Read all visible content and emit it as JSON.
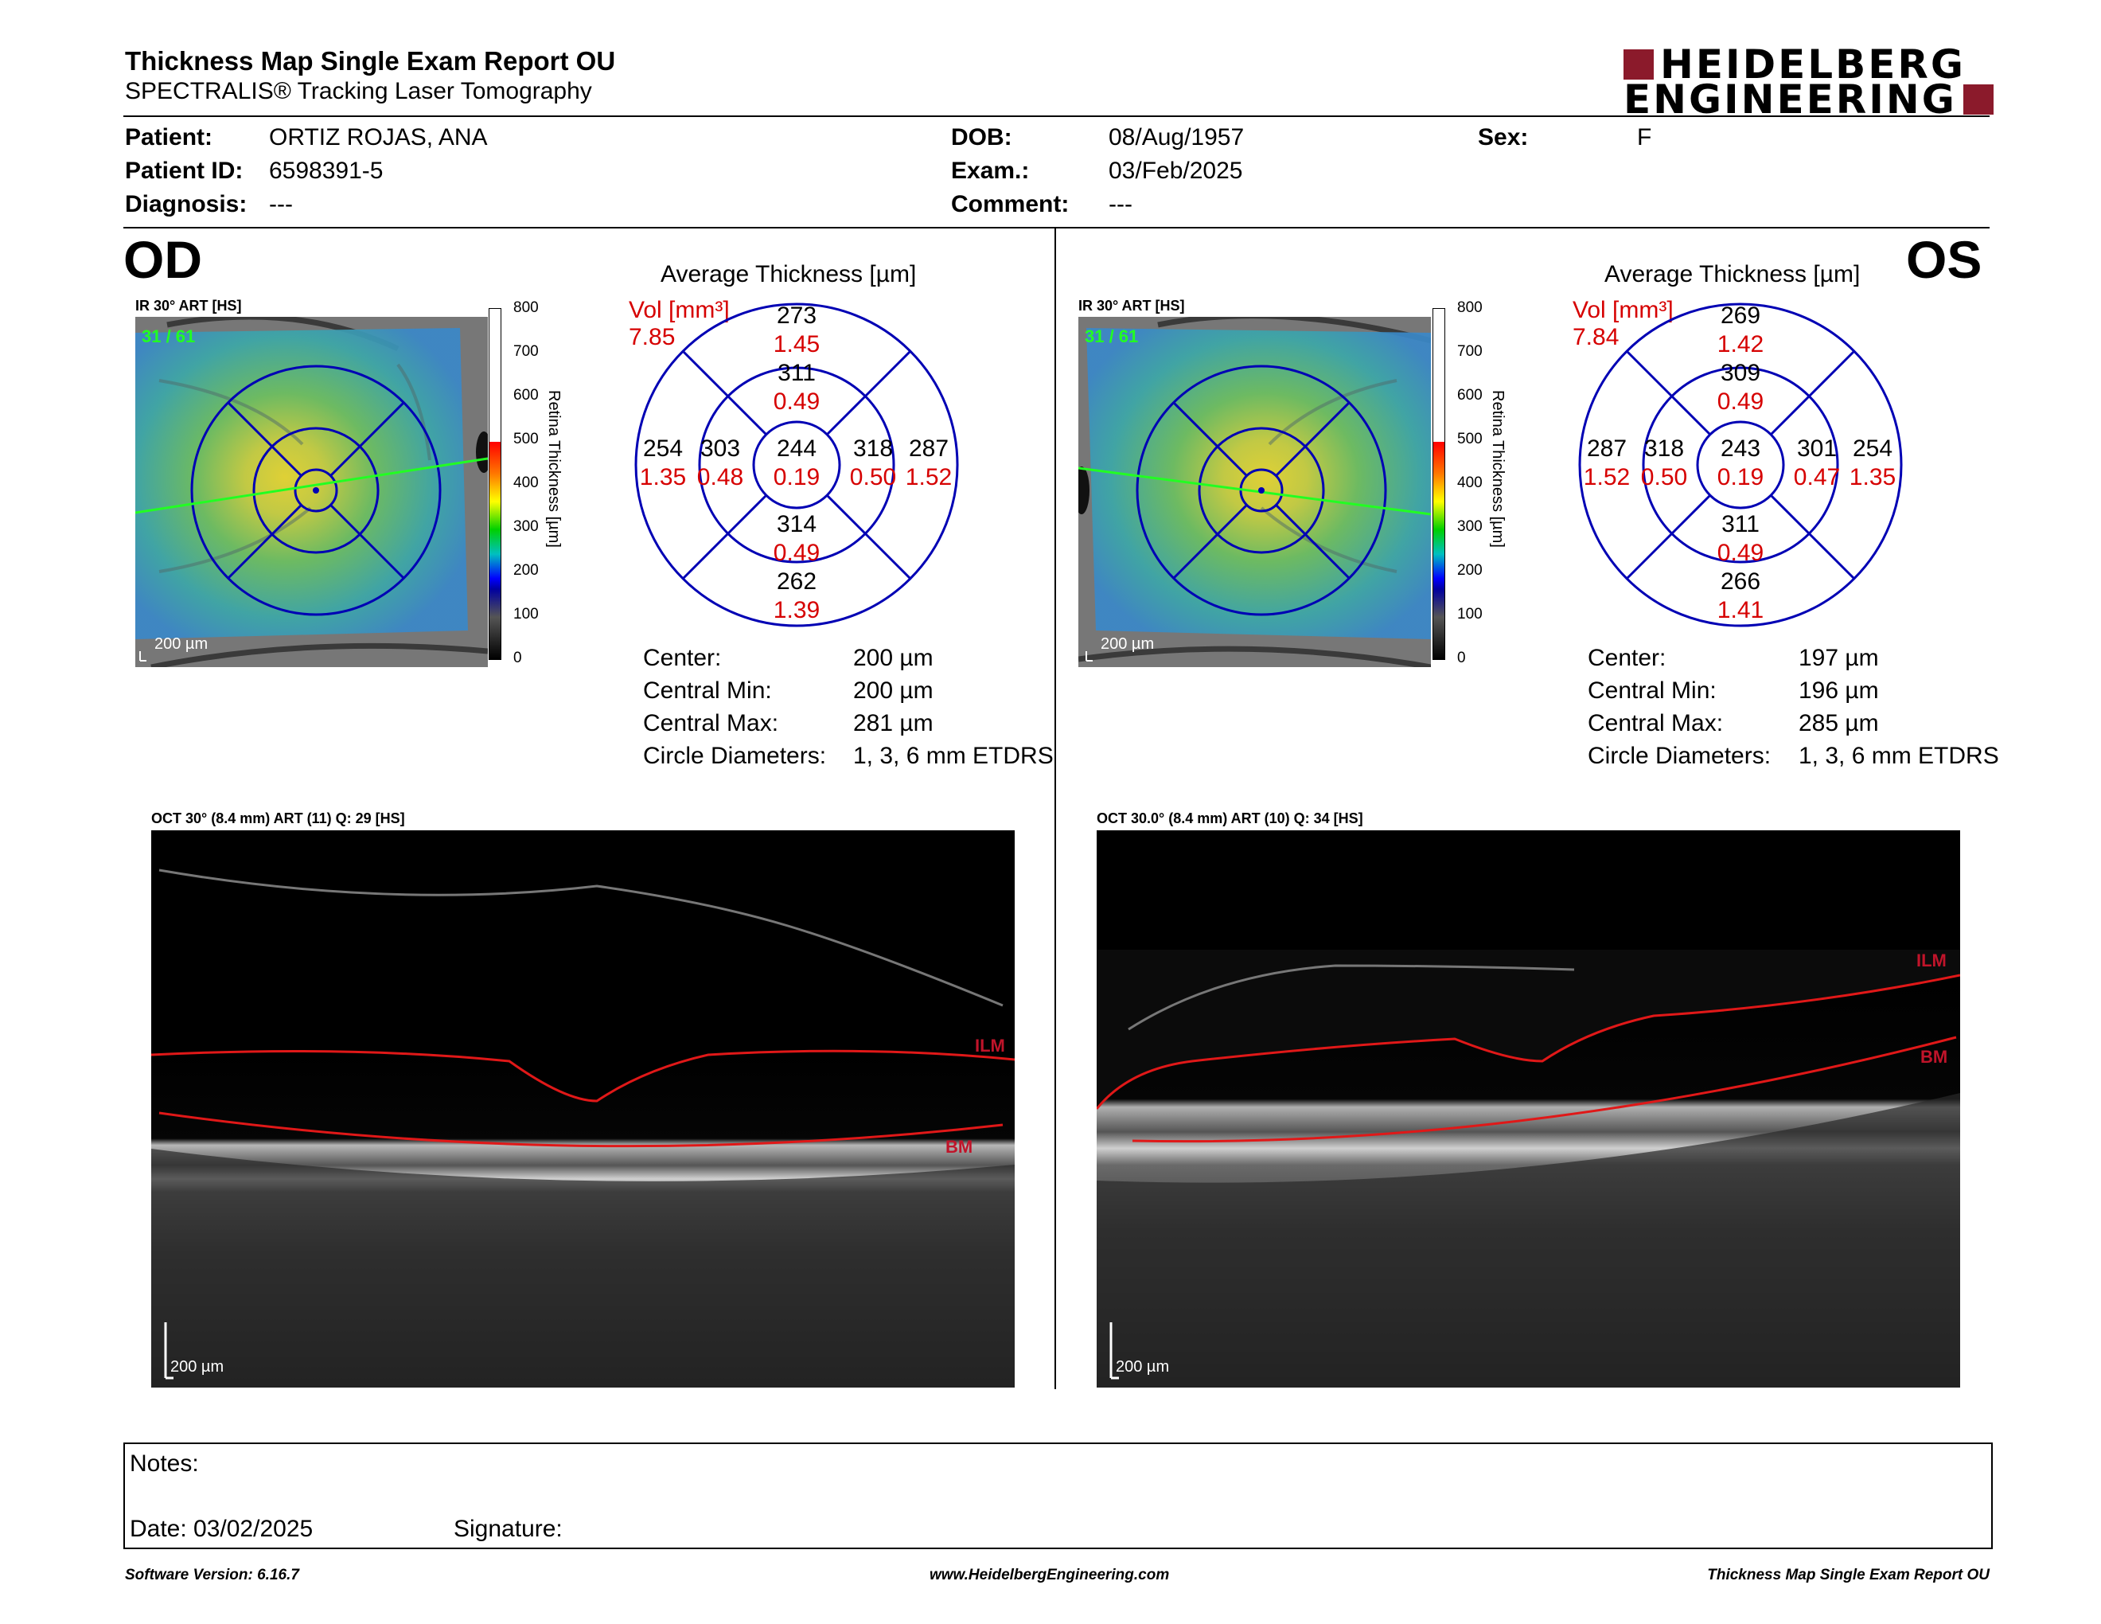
{
  "header": {
    "title": "Thickness Map Single Exam Report OU",
    "subtitle": "SPECTRALIS® Tracking Laser Tomography",
    "logo_line1": "HEIDELBERG",
    "logo_line2": "ENGINEERING"
  },
  "patient": {
    "patient_label": "Patient:",
    "patient_value": "ORTIZ ROJAS, ANA",
    "id_label": "Patient ID:",
    "id_value": "6598391-5",
    "diagnosis_label": "Diagnosis:",
    "diagnosis_value": "---",
    "dob_label": "DOB:",
    "dob_value": "08/Aug/1957",
    "exam_label": "Exam.:",
    "exam_value": "03/Feb/2025",
    "comment_label": "Comment:",
    "comment_value": "---",
    "sex_label": "Sex:",
    "sex_value": "F"
  },
  "scale": {
    "ticks": [
      "800",
      "700",
      "600",
      "500",
      "400",
      "300",
      "200",
      "100",
      "0"
    ],
    "title": "Retina Thickness [µm]"
  },
  "od": {
    "eye": "OD",
    "ir_label": "IR 30° ART [HS]",
    "ir_count": "31 / 61",
    "ir_scalebar": "200 µm",
    "avg_title": "Average Thickness [µm]",
    "vol_label": "Vol [mm³]",
    "vol_value": "7.85",
    "grid": {
      "center": {
        "t": "244",
        "v": "0.19"
      },
      "inner_sup": {
        "t": "311",
        "v": "0.49"
      },
      "inner_inf": {
        "t": "314",
        "v": "0.49"
      },
      "inner_left": {
        "t": "303",
        "v": "0.48"
      },
      "inner_right": {
        "t": "318",
        "v": "0.50"
      },
      "outer_sup": {
        "t": "273",
        "v": "1.45"
      },
      "outer_inf": {
        "t": "262",
        "v": "1.39"
      },
      "outer_left": {
        "t": "254",
        "v": "1.35"
      },
      "outer_right": {
        "t": "287",
        "v": "1.52"
      }
    },
    "stats": {
      "center_label": "Center:",
      "center_value": "200 µm",
      "min_label": "Central Min:",
      "min_value": "200 µm",
      "max_label": "Central Max:",
      "max_value": "281 µm",
      "diam_label": "Circle Diameters:",
      "diam_value": "1, 3, 6 mm ETDRS"
    },
    "oct_label": "OCT 30° (8.4 mm) ART (11) Q: 29 [HS]",
    "oct_ilm": "ILM",
    "oct_bm": "BM",
    "oct_scalebar": "200 µm"
  },
  "os": {
    "eye": "OS",
    "ir_label": "IR 30° ART [HS]",
    "ir_count": "31 / 61",
    "ir_scalebar": "200 µm",
    "avg_title": "Average Thickness [µm]",
    "vol_label": "Vol [mm³]",
    "vol_value": "7.84",
    "grid": {
      "center": {
        "t": "243",
        "v": "0.19"
      },
      "inner_sup": {
        "t": "309",
        "v": "0.49"
      },
      "inner_inf": {
        "t": "311",
        "v": "0.49"
      },
      "inner_left": {
        "t": "318",
        "v": "0.50"
      },
      "inner_right": {
        "t": "301",
        "v": "0.47"
      },
      "outer_sup": {
        "t": "269",
        "v": "1.42"
      },
      "outer_inf": {
        "t": "266",
        "v": "1.41"
      },
      "outer_left": {
        "t": "287",
        "v": "1.52"
      },
      "outer_right": {
        "t": "254",
        "v": "1.35"
      }
    },
    "stats": {
      "center_label": "Center:",
      "center_value": "197 µm",
      "min_label": "Central Min:",
      "min_value": "196 µm",
      "max_label": "Central Max:",
      "max_value": "285 µm",
      "diam_label": "Circle Diameters:",
      "diam_value": "1, 3, 6 mm ETDRS"
    },
    "oct_label": "OCT 30.0° (8.4 mm) ART (10) Q: 34 [HS]",
    "oct_ilm": "ILM",
    "oct_bm": "BM",
    "oct_scalebar": "200 µm"
  },
  "notes": {
    "notes_label": "Notes:",
    "date_label": "Date: 03/02/2025",
    "signature_label": "Signature:"
  },
  "footer": {
    "version": "Software Version: 6.16.7",
    "website": "www.HeidelbergEngineering.com",
    "report": "Thickness Map Single Exam Report OU"
  },
  "colors": {
    "accent_red": "#d60000",
    "logo_red": "#8b1a2b",
    "grid_blue": "#0000b4",
    "scan_line_green": "#22ff22"
  }
}
